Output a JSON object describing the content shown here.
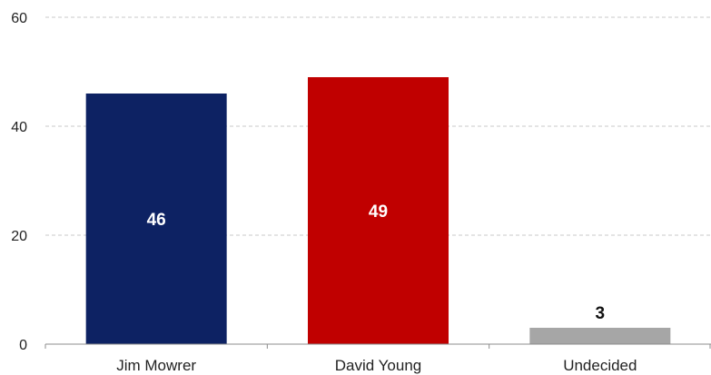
{
  "chart_data": {
    "type": "bar",
    "categories": [
      "Jim Mowrer",
      "David Young",
      "Undecided"
    ],
    "values": [
      46,
      49,
      3
    ],
    "colors": [
      "#0d2263",
      "#c00000",
      "#a6a6a6"
    ],
    "value_label_colors": [
      "#ffffff",
      "#ffffff",
      "#111111"
    ],
    "value_label_placement": [
      "inside",
      "inside",
      "above"
    ],
    "ylim": [
      0,
      60
    ],
    "yticks": [
      0,
      20,
      40,
      60
    ],
    "grid": true,
    "title": "",
    "xlabel": "",
    "ylabel": ""
  }
}
